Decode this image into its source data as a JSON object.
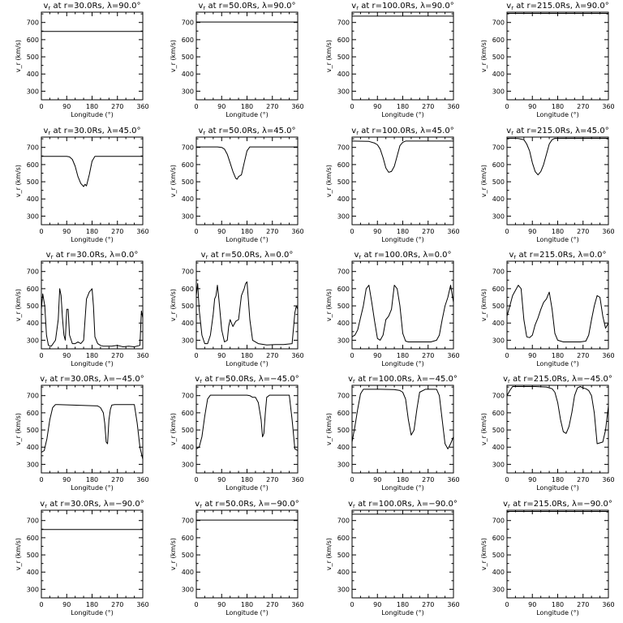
{
  "chart_data": [
    {
      "type": "line",
      "title": "v_r at r=30.0Rs, λ=90.0°",
      "title_parts": [
        "v",
        "r",
        " at r=30.0Rs, λ=90.0°"
      ],
      "xlabel": "Longitude (°)",
      "ylabel": "v_r (km/s)",
      "xlim": [
        0,
        360
      ],
      "ylim": [
        250,
        760
      ],
      "xticks": [
        "0",
        "90",
        "180",
        "270",
        "360"
      ],
      "yticks": [
        "300",
        "400",
        "500",
        "600",
        "700"
      ],
      "x": [
        0,
        360
      ],
      "y": [
        648,
        648
      ]
    },
    {
      "type": "line",
      "title": "v_r at r=50.0Rs, λ=90.0°",
      "title_parts": [
        "v",
        "r",
        " at r=50.0Rs, λ=90.0°"
      ],
      "xlabel": "Longitude (°)",
      "ylabel": "v_r (km/s)",
      "xlim": [
        0,
        360
      ],
      "ylim": [
        250,
        760
      ],
      "xticks": [
        "0",
        "90",
        "180",
        "270",
        "360"
      ],
      "yticks": [
        "300",
        "400",
        "500",
        "600",
        "700"
      ],
      "x": [
        0,
        360
      ],
      "y": [
        703,
        703
      ]
    },
    {
      "type": "line",
      "title": "v_r at r=100.0Rs, λ=90.0°",
      "title_parts": [
        "v",
        "r",
        " at r=100.0Rs, λ=90.0°"
      ],
      "xlabel": "Longitude (°)",
      "ylabel": "v_r (km/s)",
      "xlim": [
        0,
        360
      ],
      "ylim": [
        250,
        760
      ],
      "xticks": [
        "0",
        "90",
        "180",
        "270",
        "360"
      ],
      "yticks": [
        "300",
        "400",
        "500",
        "600",
        "700"
      ],
      "x": [
        0,
        360
      ],
      "y": [
        737,
        737
      ]
    },
    {
      "type": "line",
      "title": "v_r at r=215.0Rs, λ=90.0°",
      "title_parts": [
        "v",
        "r",
        " at r=215.0Rs, λ=90.0°"
      ],
      "xlabel": "Longitude (°)",
      "ylabel": "v_r (km/s)",
      "xlim": [
        0,
        360
      ],
      "ylim": [
        250,
        760
      ],
      "xticks": [
        "0",
        "90",
        "180",
        "270",
        "360"
      ],
      "yticks": [
        "300",
        "400",
        "500",
        "600",
        "700"
      ],
      "x": [
        0,
        360
      ],
      "y": [
        753,
        753
      ]
    },
    {
      "type": "line",
      "title": "v_r at r=30.0Rs, λ=45.0°",
      "title_parts": [
        "v",
        "r",
        " at r=30.0Rs, λ=45.0°"
      ],
      "xlabel": "Longitude (°)",
      "ylabel": "v_r (km/s)",
      "xlim": [
        0,
        360
      ],
      "ylim": [
        250,
        760
      ],
      "xticks": [
        "0",
        "90",
        "180",
        "270",
        "360"
      ],
      "yticks": [
        "300",
        "400",
        "500",
        "600",
        "700"
      ],
      "x": [
        0,
        90,
        100,
        110,
        120,
        130,
        140,
        150,
        155,
        160,
        170,
        180,
        190,
        360
      ],
      "y": [
        648,
        648,
        645,
        630,
        590,
        530,
        490,
        472,
        485,
        476,
        540,
        620,
        648,
        648
      ]
    },
    {
      "type": "line",
      "title": "v_r at r=50.0Rs, λ=45.0°",
      "title_parts": [
        "v",
        "r",
        " at r=50.0Rs, λ=45.0°"
      ],
      "xlabel": "Longitude (°)",
      "ylabel": "v_r (km/s)",
      "xlim": [
        0,
        360
      ],
      "ylim": [
        250,
        760
      ],
      "xticks": [
        "0",
        "90",
        "180",
        "270",
        "360"
      ],
      "yticks": [
        "300",
        "400",
        "500",
        "600",
        "700"
      ],
      "x": [
        0,
        75,
        90,
        100,
        110,
        120,
        130,
        140,
        145,
        150,
        160,
        170,
        180,
        190,
        360
      ],
      "y": [
        703,
        703,
        700,
        690,
        660,
        610,
        560,
        520,
        515,
        530,
        540,
        610,
        680,
        703,
        703
      ]
    },
    {
      "type": "line",
      "title": "v_r at r=100.0Rs, λ=45.0°",
      "title_parts": [
        "v",
        "r",
        " at r=100.0Rs, λ=45.0°"
      ],
      "xlabel": "Longitude (°)",
      "ylabel": "v_r (km/s)",
      "xlim": [
        0,
        360
      ],
      "ylim": [
        250,
        760
      ],
      "xticks": [
        "0",
        "90",
        "180",
        "270",
        "360"
      ],
      "yticks": [
        "300",
        "400",
        "500",
        "600",
        "700"
      ],
      "x": [
        0,
        60,
        80,
        90,
        100,
        110,
        120,
        130,
        140,
        150,
        160,
        170,
        180,
        190,
        360
      ],
      "y": [
        737,
        735,
        725,
        715,
        690,
        640,
        580,
        555,
        560,
        590,
        650,
        710,
        730,
        737,
        737
      ]
    },
    {
      "type": "line",
      "title": "v_r at r=215.0Rs, λ=45.0°",
      "title_parts": [
        "v",
        "r",
        " at r=215.0Rs, λ=45.0°"
      ],
      "xlabel": "Longitude (°)",
      "ylabel": "v_r (km/s)",
      "xlim": [
        0,
        360
      ],
      "ylim": [
        250,
        760
      ],
      "xticks": [
        "0",
        "90",
        "180",
        "270",
        "360"
      ],
      "yticks": [
        "300",
        "400",
        "500",
        "600",
        "700"
      ],
      "x": [
        0,
        40,
        60,
        70,
        80,
        90,
        100,
        110,
        120,
        130,
        140,
        150,
        160,
        170,
        180,
        360
      ],
      "y": [
        753,
        752,
        745,
        720,
        680,
        610,
        560,
        540,
        560,
        600,
        660,
        720,
        745,
        753,
        753,
        753
      ]
    },
    {
      "type": "line",
      "title": "v_r at r=30.0Rs, λ=0.0°",
      "title_parts": [
        "v",
        "r",
        " at r=30.0Rs, λ=0.0°"
      ],
      "xlabel": "Longitude (°)",
      "ylabel": "v_r (km/s)",
      "xlim": [
        0,
        360
      ],
      "ylim": [
        250,
        760
      ],
      "xticks": [
        "0",
        "90",
        "180",
        "270",
        "360"
      ],
      "yticks": [
        "300",
        "400",
        "500",
        "600",
        "700"
      ],
      "x": [
        0,
        5,
        12,
        18,
        25,
        35,
        50,
        60,
        65,
        70,
        75,
        80,
        85,
        90,
        95,
        100,
        110,
        120,
        130,
        140,
        150,
        160,
        165,
        170,
        180,
        185,
        190,
        200,
        210,
        220,
        230,
        250,
        270,
        290,
        310,
        330,
        350,
        355,
        360
      ],
      "y": [
        480,
        570,
        500,
        330,
        270,
        265,
        300,
        420,
        600,
        560,
        430,
        330,
        300,
        480,
        480,
        330,
        280,
        280,
        290,
        280,
        300,
        540,
        560,
        580,
        600,
        500,
        320,
        280,
        270,
        265,
        265,
        265,
        270,
        262,
        265,
        262,
        270,
        470,
        430
      ]
    },
    {
      "type": "line",
      "title": "v_r at r=50.0Rs, λ=0.0°",
      "title_parts": [
        "v",
        "r",
        " at r=50.0Rs, λ=0.0°"
      ],
      "xlabel": "Longitude (°)",
      "ylabel": "v_r (km/s)",
      "xlim": [
        0,
        360
      ],
      "ylim": [
        250,
        760
      ],
      "xticks": [
        "0",
        "90",
        "180",
        "270",
        "360"
      ],
      "yticks": [
        "300",
        "400",
        "500",
        "600",
        "700"
      ],
      "x": [
        0,
        5,
        10,
        20,
        30,
        40,
        50,
        60,
        65,
        70,
        75,
        80,
        90,
        100,
        110,
        115,
        120,
        130,
        140,
        150,
        160,
        170,
        175,
        180,
        190,
        200,
        220,
        250,
        280,
        310,
        340,
        350,
        355,
        360
      ],
      "y": [
        560,
        630,
        480,
        330,
        280,
        280,
        330,
        450,
        540,
        560,
        620,
        540,
        360,
        290,
        300,
        380,
        420,
        380,
        410,
        420,
        560,
        600,
        630,
        640,
        420,
        300,
        280,
        272,
        275,
        275,
        280,
        460,
        500,
        480
      ]
    },
    {
      "type": "line",
      "title": "v_r at r=100.0Rs, λ=0.0°",
      "title_parts": [
        "v",
        "r",
        " at r=100.0Rs, λ=0.0°"
      ],
      "xlabel": "Longitude (°)",
      "ylabel": "v_r (km/s)",
      "xlim": [
        0,
        360
      ],
      "ylim": [
        250,
        760
      ],
      "xticks": [
        "0",
        "90",
        "180",
        "270",
        "360"
      ],
      "yticks": [
        "300",
        "400",
        "500",
        "600",
        "700"
      ],
      "x": [
        0,
        10,
        20,
        30,
        40,
        50,
        60,
        70,
        80,
        90,
        100,
        110,
        120,
        130,
        140,
        150,
        160,
        170,
        180,
        190,
        200,
        220,
        250,
        280,
        300,
        310,
        320,
        330,
        340,
        350,
        360
      ],
      "y": [
        320,
        330,
        360,
        430,
        500,
        600,
        620,
        520,
        410,
        310,
        300,
        330,
        420,
        440,
        480,
        620,
        600,
        500,
        340,
        295,
        290,
        290,
        290,
        290,
        300,
        330,
        420,
        500,
        550,
        620,
        520
      ]
    },
    {
      "type": "line",
      "title": "v_r at r=215.0Rs, λ=0.0°",
      "title_parts": [
        "v",
        "r",
        " at r=215.0Rs, λ=0.0°"
      ],
      "xlabel": "Longitude (°)",
      "ylabel": "v_r (km/s)",
      "xlim": [
        0,
        360
      ],
      "ylim": [
        250,
        760
      ],
      "xticks": [
        "0",
        "90",
        "180",
        "270",
        "360"
      ],
      "yticks": [
        "300",
        "400",
        "500",
        "600",
        "700"
      ],
      "x": [
        0,
        10,
        20,
        30,
        40,
        50,
        60,
        70,
        80,
        90,
        100,
        110,
        120,
        130,
        140,
        150,
        160,
        170,
        180,
        200,
        230,
        260,
        280,
        290,
        300,
        310,
        320,
        330,
        340,
        350,
        360
      ],
      "y": [
        440,
        500,
        560,
        590,
        620,
        600,
        420,
        320,
        315,
        330,
        390,
        430,
        480,
        520,
        540,
        580,
        480,
        340,
        300,
        290,
        290,
        290,
        295,
        330,
        420,
        500,
        560,
        550,
        440,
        370,
        400
      ]
    },
    {
      "type": "line",
      "title": "v_r at r=30.0Rs, λ=−45.0°",
      "title_parts": [
        "v",
        "r",
        " at r=30.0Rs, λ=−45.0°"
      ],
      "xlabel": "Longitude (°)",
      "ylabel": "v_r (km/s)",
      "xlim": [
        0,
        360
      ],
      "ylim": [
        250,
        760
      ],
      "xticks": [
        "0",
        "90",
        "180",
        "270",
        "360"
      ],
      "yticks": [
        "300",
        "400",
        "500",
        "600",
        "700"
      ],
      "x": [
        0,
        10,
        20,
        30,
        40,
        50,
        60,
        200,
        210,
        220,
        225,
        230,
        235,
        240,
        245,
        250,
        260,
        280,
        330,
        340,
        350,
        360
      ],
      "y": [
        370,
        380,
        450,
        560,
        630,
        648,
        648,
        640,
        630,
        600,
        540,
        430,
        420,
        560,
        620,
        645,
        648,
        648,
        648,
        540,
        400,
        330
      ]
    },
    {
      "type": "line",
      "title": "v_r at r=50.0Rs, λ=−45.0°",
      "title_parts": [
        "v",
        "r",
        " at r=50.0Rs, λ=−45.0°"
      ],
      "xlabel": "Longitude (°)",
      "ylabel": "v_r (km/s)",
      "xlim": [
        0,
        360
      ],
      "ylim": [
        250,
        760
      ],
      "xticks": [
        "0",
        "90",
        "180",
        "270",
        "360"
      ],
      "yticks": [
        "300",
        "400",
        "500",
        "600",
        "700"
      ],
      "x": [
        0,
        10,
        20,
        30,
        40,
        50,
        180,
        190,
        200,
        210,
        220,
        230,
        235,
        240,
        245,
        250,
        260,
        270,
        330,
        340,
        350,
        360
      ],
      "y": [
        390,
        400,
        460,
        580,
        680,
        703,
        703,
        700,
        690,
        690,
        660,
        560,
        460,
        480,
        600,
        690,
        703,
        703,
        703,
        560,
        390,
        380
      ]
    },
    {
      "type": "line",
      "title": "v_r at r=100.0Rs, λ=−45.0°",
      "title_parts": [
        "v",
        "r",
        " at r=100.0Rs, λ=−45.0°"
      ],
      "xlabel": "Longitude (°)",
      "ylabel": "v_r (km/s)",
      "xlim": [
        0,
        360
      ],
      "ylim": [
        250,
        760
      ],
      "xticks": [
        "0",
        "90",
        "180",
        "270",
        "360"
      ],
      "yticks": [
        "300",
        "400",
        "500",
        "600",
        "700"
      ],
      "x": [
        0,
        10,
        20,
        30,
        40,
        100,
        150,
        170,
        180,
        190,
        200,
        210,
        220,
        230,
        240,
        260,
        300,
        310,
        320,
        330,
        340,
        350,
        360
      ],
      "y": [
        430,
        520,
        620,
        710,
        737,
        737,
        735,
        730,
        720,
        680,
        560,
        470,
        500,
        620,
        720,
        737,
        737,
        700,
        560,
        420,
        390,
        420,
        460
      ]
    },
    {
      "type": "line",
      "title": "v_r at r=215.0Rs, λ=−45.0°",
      "title_parts": [
        "v",
        "r",
        " at r=215.0Rs, λ=−45.0°"
      ],
      "xlabel": "Longitude (°)",
      "ylabel": "v_r (km/s)",
      "xlim": [
        0,
        360
      ],
      "ylim": [
        250,
        760
      ],
      "xticks": [
        "0",
        "90",
        "180",
        "270",
        "360"
      ],
      "yticks": [
        "300",
        "400",
        "500",
        "600",
        "700"
      ],
      "x": [
        0,
        10,
        20,
        100,
        140,
        160,
        170,
        180,
        190,
        200,
        210,
        220,
        230,
        240,
        250,
        260,
        270,
        280,
        290,
        300,
        310,
        320,
        340,
        350,
        360
      ],
      "y": [
        700,
        730,
        753,
        753,
        750,
        740,
        720,
        660,
        560,
        490,
        480,
        520,
        600,
        700,
        745,
        753,
        745,
        740,
        730,
        700,
        600,
        420,
        430,
        500,
        640
      ]
    },
    {
      "type": "line",
      "title": "v_r at r=30.0Rs, λ=−90.0°",
      "title_parts": [
        "v",
        "r",
        " at r=30.0Rs, λ=−90.0°"
      ],
      "xlabel": "Longitude (°)",
      "ylabel": "v_r (km/s)",
      "xlim": [
        0,
        360
      ],
      "ylim": [
        250,
        760
      ],
      "xticks": [
        "0",
        "90",
        "180",
        "270",
        "360"
      ],
      "yticks": [
        "300",
        "400",
        "500",
        "600",
        "700"
      ],
      "x": [
        0,
        360
      ],
      "y": [
        648,
        648
      ]
    },
    {
      "type": "line",
      "title": "v_r at r=50.0Rs, λ=−90.0°",
      "title_parts": [
        "v",
        "r",
        " at r=50.0Rs, λ=−90.0°"
      ],
      "xlabel": "Longitude (°)",
      "ylabel": "v_r (km/s)",
      "xlim": [
        0,
        360
      ],
      "ylim": [
        250,
        760
      ],
      "xticks": [
        "0",
        "90",
        "180",
        "270",
        "360"
      ],
      "yticks": [
        "300",
        "400",
        "500",
        "600",
        "700"
      ],
      "x": [
        0,
        360
      ],
      "y": [
        703,
        703
      ]
    },
    {
      "type": "line",
      "title": "v_r at r=100.0Rs, λ=−90.0°",
      "title_parts": [
        "v",
        "r",
        " at r=100.0Rs, λ=−90.0°"
      ],
      "xlabel": "Longitude (°)",
      "ylabel": "v_r (km/s)",
      "xlim": [
        0,
        360
      ],
      "ylim": [
        250,
        760
      ],
      "xticks": [
        "0",
        "90",
        "180",
        "270",
        "360"
      ],
      "yticks": [
        "300",
        "400",
        "500",
        "600",
        "700"
      ],
      "x": [
        0,
        360
      ],
      "y": [
        737,
        737
      ]
    },
    {
      "type": "line",
      "title": "v_r at r=215.0Rs, λ=−90.0°",
      "title_parts": [
        "v",
        "r",
        " at r=215.0Rs, λ=−90.0°"
      ],
      "xlabel": "Longitude (°)",
      "ylabel": "v_r (km/s)",
      "xlim": [
        0,
        360
      ],
      "ylim": [
        250,
        760
      ],
      "xticks": [
        "0",
        "90",
        "180",
        "270",
        "360"
      ],
      "yticks": [
        "300",
        "400",
        "500",
        "600",
        "700"
      ],
      "x": [
        0,
        360
      ],
      "y": [
        753,
        753
      ]
    }
  ]
}
